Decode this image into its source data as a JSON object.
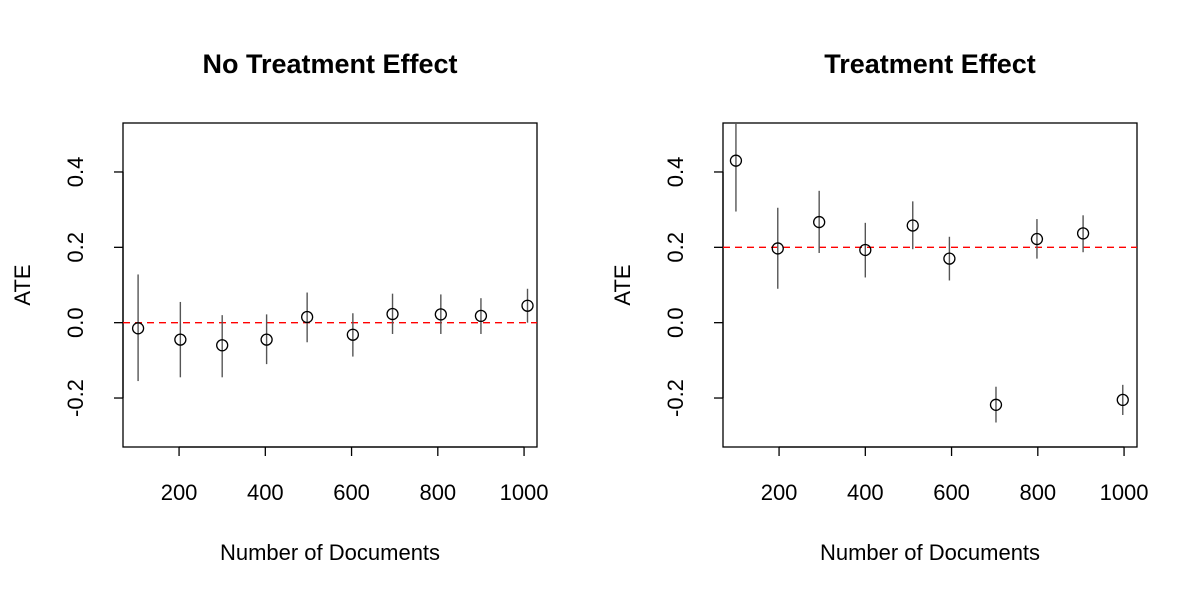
{
  "chart_data": [
    {
      "type": "scatter",
      "title": "No Treatment Effect",
      "xlabel": "Number of Documents",
      "ylabel": "ATE",
      "xlim": [
        70,
        1030
      ],
      "ylim": [
        -0.33,
        0.53
      ],
      "x_ticks": [
        200,
        400,
        600,
        800,
        1000
      ],
      "x_tick_labels": [
        "200",
        "400",
        "600",
        "800",
        "1000"
      ],
      "y_ticks": [
        -0.2,
        0.0,
        0.2,
        0.4
      ],
      "y_tick_labels": [
        "-0.2",
        "0.0",
        "0.2",
        "0.4"
      ],
      "reference_line": {
        "y": 0.0,
        "color": "#ff0000",
        "style": "dashed"
      },
      "grid": false,
      "points": [
        {
          "x": 105,
          "y": -0.015,
          "lower": -0.155,
          "upper": 0.128
        },
        {
          "x": 203,
          "y": -0.045,
          "lower": -0.145,
          "upper": 0.055
        },
        {
          "x": 300,
          "y": -0.06,
          "lower": -0.145,
          "upper": 0.02
        },
        {
          "x": 403,
          "y": -0.045,
          "lower": -0.11,
          "upper": 0.022
        },
        {
          "x": 497,
          "y": 0.015,
          "lower": -0.052,
          "upper": 0.08
        },
        {
          "x": 603,
          "y": -0.032,
          "lower": -0.09,
          "upper": 0.025
        },
        {
          "x": 695,
          "y": 0.023,
          "lower": -0.03,
          "upper": 0.077
        },
        {
          "x": 807,
          "y": 0.022,
          "lower": -0.03,
          "upper": 0.075
        },
        {
          "x": 900,
          "y": 0.018,
          "lower": -0.03,
          "upper": 0.065
        },
        {
          "x": 1008,
          "y": 0.045,
          "lower": 0.0,
          "upper": 0.09
        }
      ]
    },
    {
      "type": "scatter",
      "title": "Treatment Effect",
      "xlabel": "Number of Documents",
      "ylabel": "ATE",
      "xlim": [
        70,
        1030
      ],
      "ylim": [
        -0.33,
        0.53
      ],
      "x_ticks": [
        200,
        400,
        600,
        800,
        1000
      ],
      "x_tick_labels": [
        "200",
        "400",
        "600",
        "800",
        "1000"
      ],
      "y_ticks": [
        -0.2,
        0.0,
        0.2,
        0.4
      ],
      "y_tick_labels": [
        "-0.2",
        "0.0",
        "0.2",
        "0.4"
      ],
      "reference_line": {
        "y": 0.2,
        "color": "#ff0000",
        "style": "dashed"
      },
      "grid": false,
      "points": [
        {
          "x": 100,
          "y": 0.43,
          "lower": 0.295,
          "upper": 0.53
        },
        {
          "x": 197,
          "y": 0.197,
          "lower": 0.09,
          "upper": 0.305
        },
        {
          "x": 293,
          "y": 0.267,
          "lower": 0.185,
          "upper": 0.35
        },
        {
          "x": 400,
          "y": 0.193,
          "lower": 0.12,
          "upper": 0.265
        },
        {
          "x": 510,
          "y": 0.258,
          "lower": 0.195,
          "upper": 0.322
        },
        {
          "x": 595,
          "y": 0.17,
          "lower": 0.112,
          "upper": 0.228
        },
        {
          "x": 703,
          "y": -0.218,
          "lower": -0.265,
          "upper": -0.17
        },
        {
          "x": 798,
          "y": 0.222,
          "lower": 0.17,
          "upper": 0.275
        },
        {
          "x": 905,
          "y": 0.237,
          "lower": 0.187,
          "upper": 0.285
        },
        {
          "x": 997,
          "y": -0.205,
          "lower": -0.245,
          "upper": -0.165
        }
      ]
    }
  ]
}
